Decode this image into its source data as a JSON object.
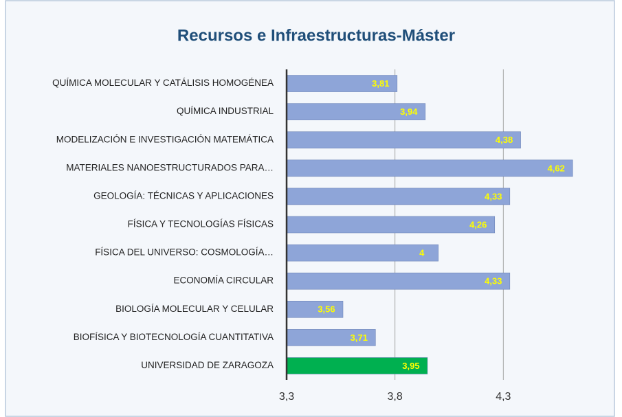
{
  "chart_data": {
    "type": "bar",
    "orientation": "horizontal",
    "title": "Recursos e Infraestructuras-Máster",
    "categories": [
      "QUÍMICA MOLECULAR Y CATÁLISIS HOMOGÉNEA",
      "QUÍMICA INDUSTRIAL",
      "MODELIZACIÓN E INVESTIGACIÓN MATEMÁTICA",
      "MATERIALES NANOESTRUCTURADOS PARA…",
      "GEOLOGÍA: TÉCNICAS Y APLICACIONES",
      "FÍSICA Y TECNOLOGÍAS FÍSICAS",
      "FÍSICA DEL UNIVERSO: COSMOLOGÍA…",
      "ECONOMÍA CIRCULAR",
      "BIOLOGÍA MOLECULAR Y CELULAR",
      "BIOFÍSICA Y BIOTECNOLOGÍA CUANTITATIVA",
      "UNIVERSIDAD DE ZARAGOZA"
    ],
    "values": [
      3.81,
      3.94,
      4.38,
      4.62,
      4.33,
      4.26,
      4,
      4.33,
      3.56,
      3.71,
      3.95
    ],
    "value_labels": [
      "3,81",
      "3,94",
      "4,38",
      "4,62",
      "4,33",
      "4,26",
      "4",
      "4,33",
      "3,56",
      "3,71",
      "3,95"
    ],
    "colors": [
      "#8ea5d8",
      "#8ea5d8",
      "#8ea5d8",
      "#8ea5d8",
      "#8ea5d8",
      "#8ea5d8",
      "#8ea5d8",
      "#8ea5d8",
      "#8ea5d8",
      "#8ea5d8",
      "#00b050"
    ],
    "xlim": [
      3.3,
      4.8
    ],
    "xticks": [
      {
        "value": 3.3,
        "label": "3,3"
      },
      {
        "value": 3.8,
        "label": "3,8"
      },
      {
        "value": 4.3,
        "label": "4,3"
      }
    ],
    "grid": true
  }
}
